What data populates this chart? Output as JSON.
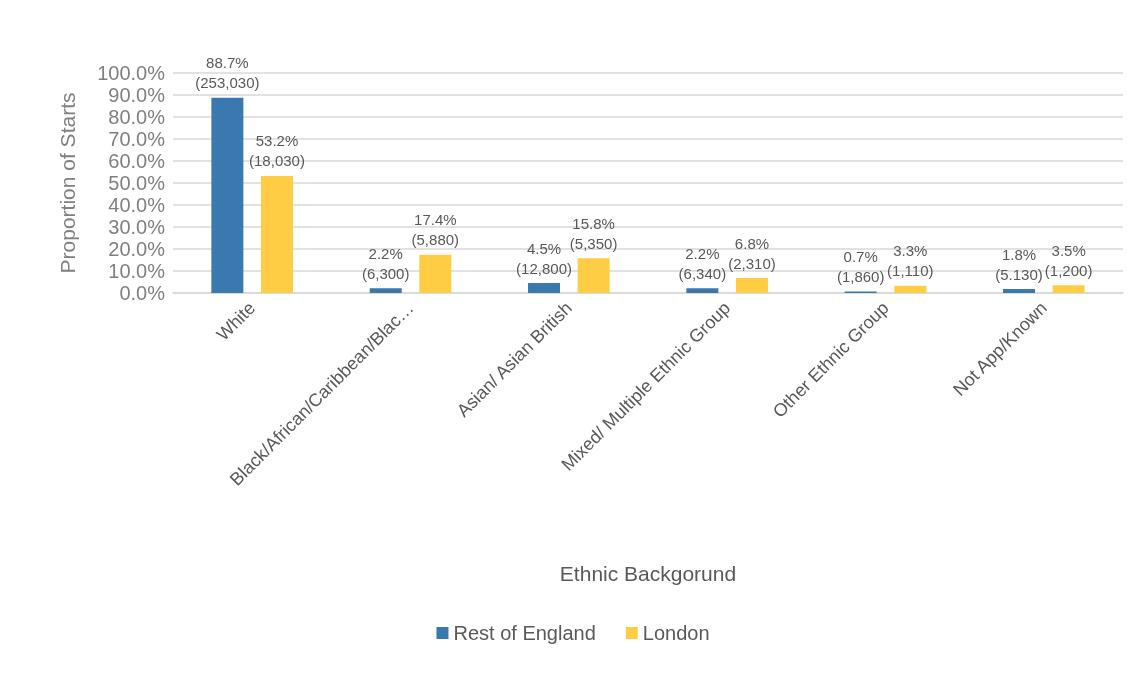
{
  "chart_data": {
    "type": "bar",
    "xlabel": "Ethnic Backgorund",
    "ylabel": "Proportion of Starts",
    "categories": [
      "White",
      "Black/African/Caribbean/Blac…",
      "Asian/ Asian British",
      "Mixed/ Multiple Ethnic Group",
      "Other Ethnic Group",
      "Not App/Known"
    ],
    "series": [
      {
        "name": "Rest of England",
        "color": "#3a78af",
        "values": [
          88.7,
          2.2,
          4.5,
          2.2,
          0.7,
          1.8
        ],
        "value_labels": [
          "88.7%\n(253,030)",
          "2.2%\n(6,300)",
          "4.5%\n(12,800)",
          "2.2%\n(6,340)",
          "0.7%\n(1,860)",
          "1.8%\n(5.130)"
        ]
      },
      {
        "name": "London",
        "color": "#ffcd44",
        "values": [
          53.2,
          17.4,
          15.8,
          6.8,
          3.3,
          3.5
        ],
        "value_labels": [
          "53.2%\n(18,030)",
          "17.4%\n(5,880)",
          "15.8%\n(5,350)",
          "6.8%\n(2,310)",
          "3.3%\n(1,110)",
          "3.5%\n(1,200)"
        ]
      }
    ],
    "ylim": [
      0,
      100
    ],
    "yticks": [
      {
        "value": 0,
        "label": "0.0%"
      },
      {
        "value": 10,
        "label": "10.0%"
      },
      {
        "value": 20,
        "label": "20.0%"
      },
      {
        "value": 30,
        "label": "30.0%"
      },
      {
        "value": 40,
        "label": "40.0%"
      },
      {
        "value": 50,
        "label": "50.0%"
      },
      {
        "value": 60,
        "label": "60.0%"
      },
      {
        "value": 70,
        "label": "70.0%"
      },
      {
        "value": 80,
        "label": "80.0%"
      },
      {
        "value": 90,
        "label": "90.0%"
      },
      {
        "value": 100,
        "label": "100.0%"
      }
    ],
    "grid": "y",
    "legend": "bottom"
  }
}
